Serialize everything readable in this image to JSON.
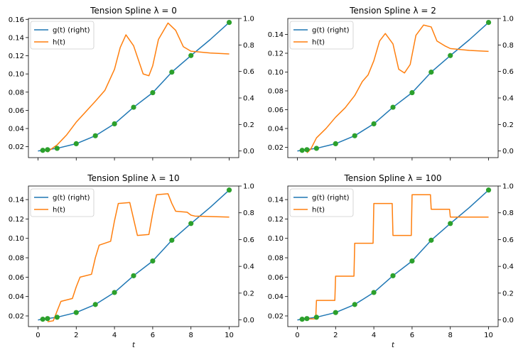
{
  "colors": {
    "g": "#1f77b4",
    "h": "#ff7f0e",
    "points": "#2ca02c"
  },
  "chart_data": [
    {
      "type": "line",
      "title": "Tension Spline λ = 0",
      "lambda": 0,
      "xlim": [
        -0.5,
        10.5
      ],
      "xticks": [
        0,
        2,
        4,
        6,
        8,
        10
      ],
      "show_xtick_labels": false,
      "xlabel": "",
      "ylim_left": [
        0.008,
        0.161
      ],
      "yticks_left": [
        "0.02",
        "0.04",
        "0.06",
        "0.08",
        "0.10",
        "0.12",
        "0.14",
        "0.16"
      ],
      "ylim_right": [
        -0.05,
        1.0
      ],
      "yticks_right": [
        "0.0",
        "0.2",
        "0.4",
        "0.6",
        "0.8",
        "1.0"
      ],
      "legend": {
        "placement": "upper-left",
        "entries": [
          "g(t) (right)",
          "h(t)"
        ]
      },
      "series": [
        {
          "name": "g(t) (right)",
          "axis": "right",
          "x": [
            0,
            0.25,
            0.5,
            1,
            2,
            3,
            4,
            5,
            6,
            7,
            8,
            9,
            10
          ],
          "y": [
            0.0,
            0.005,
            0.01,
            0.02,
            0.055,
            0.115,
            0.205,
            0.33,
            0.44,
            0.595,
            0.72,
            0.84,
            0.97
          ]
        },
        {
          "name": "h(t)",
          "axis": "left",
          "x": [
            0.5,
            0.6,
            1.0,
            1.5,
            2.0,
            3.0,
            3.5,
            4.0,
            4.3,
            4.6,
            5.0,
            5.5,
            5.8,
            6.0,
            6.3,
            6.8,
            7.2,
            7.6,
            8.0,
            9.0,
            10.0
          ],
          "y": [
            0.014,
            0.016,
            0.022,
            0.033,
            0.047,
            0.07,
            0.082,
            0.105,
            0.129,
            0.143,
            0.131,
            0.1,
            0.098,
            0.109,
            0.138,
            0.156,
            0.148,
            0.13,
            0.125,
            0.123,
            0.122
          ]
        },
        {
          "name": "",
          "axis": "right",
          "kind": "points",
          "x": [
            0.25,
            0.5,
            1,
            2,
            3,
            4,
            5,
            6,
            7,
            8,
            10
          ],
          "y": [
            0.005,
            0.01,
            0.02,
            0.055,
            0.115,
            0.205,
            0.33,
            0.44,
            0.595,
            0.72,
            0.97
          ]
        }
      ]
    },
    {
      "type": "line",
      "title": "Tension Spline λ = 2",
      "lambda": 2,
      "xlim": [
        -0.5,
        10.5
      ],
      "xticks": [
        0,
        2,
        4,
        6,
        8,
        10
      ],
      "show_xtick_labels": false,
      "xlabel": "",
      "ylim_left": [
        0.009,
        0.157
      ],
      "yticks_left": [
        "0.02",
        "0.04",
        "0.06",
        "0.08",
        "0.10",
        "0.12",
        "0.14"
      ],
      "ylim_right": [
        -0.05,
        1.0
      ],
      "yticks_right": [
        "0.0",
        "0.2",
        "0.4",
        "0.6",
        "0.8",
        "1.0"
      ],
      "legend": {
        "placement": "upper-left",
        "entries": [
          "g(t) (right)",
          "h(t)"
        ]
      },
      "series": [
        {
          "name": "g(t) (right)",
          "axis": "right",
          "x": [
            0,
            0.25,
            0.5,
            1,
            2,
            3,
            4,
            5,
            6,
            7,
            8,
            9,
            10
          ],
          "y": [
            0.0,
            0.005,
            0.01,
            0.02,
            0.055,
            0.115,
            0.205,
            0.33,
            0.44,
            0.595,
            0.72,
            0.84,
            0.97
          ]
        },
        {
          "name": "h(t)",
          "axis": "left",
          "x": [
            0.5,
            0.7,
            1.0,
            1.5,
            2.0,
            2.5,
            3.0,
            3.4,
            3.7,
            4.0,
            4.3,
            4.6,
            5.0,
            5.3,
            5.6,
            5.9,
            6.2,
            6.6,
            7.0,
            7.3,
            7.7,
            8.0,
            9.0,
            10.0
          ],
          "y": [
            0.014,
            0.018,
            0.03,
            0.04,
            0.052,
            0.062,
            0.075,
            0.09,
            0.097,
            0.112,
            0.133,
            0.141,
            0.13,
            0.103,
            0.099,
            0.108,
            0.139,
            0.15,
            0.148,
            0.133,
            0.128,
            0.125,
            0.123,
            0.122
          ]
        },
        {
          "name": "",
          "axis": "right",
          "kind": "points",
          "x": [
            0.25,
            0.5,
            1,
            2,
            3,
            4,
            5,
            6,
            7,
            8,
            10
          ],
          "y": [
            0.005,
            0.01,
            0.02,
            0.055,
            0.115,
            0.205,
            0.33,
            0.44,
            0.595,
            0.72,
            0.97
          ]
        }
      ]
    },
    {
      "type": "line",
      "title": "Tension Spline λ = 10",
      "lambda": 10,
      "xlim": [
        -0.5,
        10.5
      ],
      "xticks": [
        0,
        2,
        4,
        6,
        8,
        10
      ],
      "show_xtick_labels": true,
      "xlabel": "t",
      "ylim_left": [
        0.009,
        0.154
      ],
      "yticks_left": [
        "0.02",
        "0.04",
        "0.06",
        "0.08",
        "0.10",
        "0.12",
        "0.14"
      ],
      "ylim_right": [
        -0.05,
        1.0
      ],
      "yticks_right": [
        "0.0",
        "0.2",
        "0.4",
        "0.6",
        "0.8",
        "1.0"
      ],
      "legend": {
        "placement": "upper-left",
        "entries": [
          "g(t) (right)",
          "h(t)"
        ]
      },
      "series": [
        {
          "name": "g(t) (right)",
          "axis": "right",
          "x": [
            0,
            0.25,
            0.5,
            1,
            2,
            3,
            4,
            5,
            6,
            7,
            8,
            9,
            10
          ],
          "y": [
            0.0,
            0.005,
            0.01,
            0.02,
            0.055,
            0.115,
            0.205,
            0.33,
            0.44,
            0.595,
            0.72,
            0.84,
            0.97
          ]
        },
        {
          "name": "h(t)",
          "axis": "left",
          "x": [
            0.5,
            0.8,
            1.0,
            1.2,
            1.8,
            2.0,
            2.2,
            2.8,
            3.0,
            3.2,
            3.8,
            4.0,
            4.2,
            4.8,
            5.0,
            5.2,
            5.8,
            6.0,
            6.2,
            6.8,
            7.0,
            7.2,
            7.8,
            8.0,
            8.2,
            10.0
          ],
          "y": [
            0.014,
            0.015,
            0.025,
            0.035,
            0.038,
            0.05,
            0.06,
            0.063,
            0.08,
            0.093,
            0.097,
            0.118,
            0.136,
            0.137,
            0.12,
            0.103,
            0.104,
            0.126,
            0.145,
            0.146,
            0.136,
            0.128,
            0.127,
            0.124,
            0.123,
            0.122
          ]
        },
        {
          "name": "",
          "axis": "right",
          "kind": "points",
          "x": [
            0.25,
            0.5,
            1,
            2,
            3,
            4,
            5,
            6,
            7,
            8,
            10
          ],
          "y": [
            0.005,
            0.01,
            0.02,
            0.055,
            0.115,
            0.205,
            0.33,
            0.44,
            0.595,
            0.72,
            0.97
          ]
        }
      ]
    },
    {
      "type": "line",
      "title": "Tension Spline λ = 100",
      "lambda": 100,
      "xlim": [
        -0.5,
        10.5
      ],
      "xticks": [
        0,
        2,
        4,
        6,
        8,
        10
      ],
      "show_xtick_labels": true,
      "xlabel": "t",
      "ylim_left": [
        0.009,
        0.154
      ],
      "yticks_left": [
        "0.02",
        "0.04",
        "0.06",
        "0.08",
        "0.10",
        "0.12",
        "0.14"
      ],
      "ylim_right": [
        -0.05,
        1.0
      ],
      "yticks_right": [
        "0.0",
        "0.2",
        "0.4",
        "0.6",
        "0.8",
        "1.0"
      ],
      "legend": {
        "placement": "upper-left",
        "entries": [
          "g(t) (right)",
          "h(t)"
        ]
      },
      "series": [
        {
          "name": "g(t) (right)",
          "axis": "right",
          "x": [
            0,
            0.25,
            0.5,
            1,
            2,
            3,
            4,
            5,
            6,
            7,
            8,
            9,
            10
          ],
          "y": [
            0.0,
            0.005,
            0.01,
            0.02,
            0.055,
            0.115,
            0.205,
            0.33,
            0.44,
            0.595,
            0.72,
            0.84,
            0.97
          ]
        },
        {
          "name": "h(t)",
          "axis": "left",
          "x": [
            0.5,
            0.96,
            1.0,
            1.96,
            2.0,
            2.96,
            3.0,
            3.96,
            4.0,
            4.96,
            5.0,
            5.96,
            6.0,
            6.96,
            7.0,
            7.96,
            8.0,
            10.0
          ],
          "y": [
            0.017,
            0.017,
            0.036,
            0.036,
            0.061,
            0.061,
            0.095,
            0.095,
            0.136,
            0.136,
            0.103,
            0.103,
            0.145,
            0.145,
            0.13,
            0.13,
            0.122,
            0.122
          ]
        },
        {
          "name": "",
          "axis": "right",
          "kind": "points",
          "x": [
            0.25,
            0.5,
            1,
            2,
            3,
            4,
            5,
            6,
            7,
            8,
            10
          ],
          "y": [
            0.005,
            0.01,
            0.02,
            0.055,
            0.115,
            0.205,
            0.33,
            0.44,
            0.595,
            0.72,
            0.97
          ]
        }
      ]
    }
  ]
}
